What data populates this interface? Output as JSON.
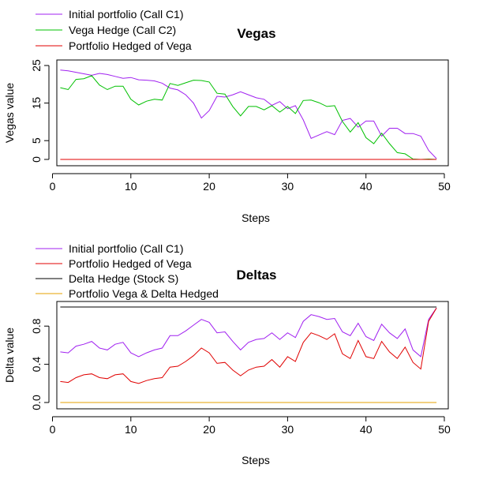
{
  "chart_data": [
    {
      "type": "line",
      "title": "Vegas",
      "xlabel": "Steps",
      "ylabel": "Vegas value",
      "xlim": [
        0,
        50
      ],
      "ylim": [
        0,
        25
      ],
      "xticks": [
        0,
        10,
        20,
        30,
        40,
        50
      ],
      "yticks": [
        0,
        5,
        15,
        25
      ],
      "grid": false,
      "legend_position": "top-left, outside plot",
      "x": [
        1,
        2,
        3,
        4,
        5,
        6,
        7,
        8,
        9,
        10,
        11,
        12,
        13,
        14,
        15,
        16,
        17,
        18,
        19,
        20,
        21,
        22,
        23,
        24,
        25,
        26,
        27,
        28,
        29,
        30,
        31,
        32,
        33,
        34,
        35,
        36,
        37,
        38,
        39,
        40,
        41,
        42,
        43,
        44,
        45,
        46,
        47,
        48,
        49
      ],
      "series": [
        {
          "name": "Initial portfolio (Call C1)",
          "color": "#a020f0",
          "values": [
            23.8,
            23.6,
            23.2,
            22.8,
            22.4,
            22.9,
            22.6,
            22.1,
            21.6,
            21.8,
            21.2,
            21.1,
            20.9,
            20.3,
            19.0,
            18.5,
            17.2,
            15.0,
            11.0,
            13.0,
            16.8,
            16.6,
            17.2,
            18.0,
            17.2,
            16.4,
            16.0,
            14.4,
            15.4,
            13.5,
            14.3,
            10.5,
            5.6,
            6.5,
            7.4,
            6.6,
            10.4,
            10.9,
            8.6,
            10.2,
            10.2,
            6.2,
            8.3,
            8.3,
            6.9,
            6.9,
            6.2,
            2.4,
            0.2
          ]
        },
        {
          "name": "Vega Hedge (Call C2)",
          "color": "#00c000",
          "values": [
            19.1,
            18.6,
            21.3,
            21.5,
            22.3,
            19.8,
            18.6,
            19.5,
            19.5,
            16.0,
            14.5,
            15.5,
            16.0,
            15.8,
            20.2,
            19.7,
            20.4,
            21.1,
            21.0,
            20.6,
            17.6,
            17.4,
            14.1,
            11.6,
            14.1,
            14.1,
            13.2,
            14.3,
            12.6,
            14.1,
            12.2,
            15.7,
            15.8,
            15.1,
            14.1,
            14.3,
            10.1,
            7.3,
            9.8,
            5.8,
            4.2,
            7.0,
            4.2,
            1.8,
            1.5,
            0.1,
            0.0,
            0.1,
            0.0
          ]
        },
        {
          "name": "Portfolio Hedged of Vega",
          "color": "#e00000",
          "values": [
            0,
            0,
            0,
            0,
            0,
            0,
            0,
            0,
            0,
            0,
            0,
            0,
            0,
            0,
            0,
            0,
            0,
            0,
            0,
            0,
            0,
            0,
            0,
            0,
            0,
            0,
            0,
            0,
            0,
            0,
            0,
            0,
            0,
            0,
            0,
            0,
            0,
            0,
            0,
            0,
            0,
            0,
            0,
            0,
            0,
            0,
            0,
            0,
            0
          ]
        }
      ]
    },
    {
      "type": "line",
      "title": "Deltas",
      "xlabel": "Steps",
      "ylabel": "Delta value",
      "xlim": [
        0,
        50
      ],
      "ylim": [
        0,
        1
      ],
      "xticks": [
        0,
        10,
        20,
        30,
        40,
        50
      ],
      "yticks": [
        0.0,
        0.4,
        0.8
      ],
      "grid": false,
      "legend_position": "top-left, outside plot",
      "x": [
        1,
        2,
        3,
        4,
        5,
        6,
        7,
        8,
        9,
        10,
        11,
        12,
        13,
        14,
        15,
        16,
        17,
        18,
        19,
        20,
        21,
        22,
        23,
        24,
        25,
        26,
        27,
        28,
        29,
        30,
        31,
        32,
        33,
        34,
        35,
        36,
        37,
        38,
        39,
        40,
        41,
        42,
        43,
        44,
        45,
        46,
        47,
        48,
        49
      ],
      "series": [
        {
          "name": "Initial portfolio (Call C1)",
          "color": "#a020f0",
          "values": [
            0.53,
            0.52,
            0.59,
            0.61,
            0.64,
            0.57,
            0.55,
            0.61,
            0.63,
            0.52,
            0.48,
            0.52,
            0.55,
            0.57,
            0.7,
            0.7,
            0.75,
            0.81,
            0.87,
            0.84,
            0.73,
            0.74,
            0.64,
            0.55,
            0.63,
            0.66,
            0.67,
            0.73,
            0.66,
            0.73,
            0.68,
            0.85,
            0.92,
            0.9,
            0.87,
            0.88,
            0.74,
            0.7,
            0.83,
            0.69,
            0.65,
            0.82,
            0.73,
            0.67,
            0.77,
            0.55,
            0.48,
            0.87,
            0.99
          ]
        },
        {
          "name": "Portfolio Hedged of Vega",
          "color": "#e00000",
          "values": [
            0.22,
            0.21,
            0.26,
            0.29,
            0.3,
            0.26,
            0.25,
            0.29,
            0.3,
            0.22,
            0.2,
            0.23,
            0.25,
            0.26,
            0.37,
            0.38,
            0.43,
            0.49,
            0.57,
            0.52,
            0.41,
            0.42,
            0.34,
            0.28,
            0.34,
            0.37,
            0.38,
            0.45,
            0.37,
            0.48,
            0.43,
            0.63,
            0.73,
            0.7,
            0.66,
            0.72,
            0.51,
            0.46,
            0.65,
            0.48,
            0.46,
            0.64,
            0.53,
            0.46,
            0.58,
            0.42,
            0.35,
            0.85,
            0.99
          ]
        },
        {
          "name": "Delta Hedge (Stock S)",
          "color": "#000000",
          "values": [
            1,
            1,
            1,
            1,
            1,
            1,
            1,
            1,
            1,
            1,
            1,
            1,
            1,
            1,
            1,
            1,
            1,
            1,
            1,
            1,
            1,
            1,
            1,
            1,
            1,
            1,
            1,
            1,
            1,
            1,
            1,
            1,
            1,
            1,
            1,
            1,
            1,
            1,
            1,
            1,
            1,
            1,
            1,
            1,
            1,
            1,
            1,
            1,
            1
          ]
        },
        {
          "name": "Portfolio Vega & Delta Hedged",
          "color": "#e6a000",
          "values": [
            0,
            0,
            0,
            0,
            0,
            0,
            0,
            0,
            0,
            0,
            0,
            0,
            0,
            0,
            0,
            0,
            0,
            0,
            0,
            0,
            0,
            0,
            0,
            0,
            0,
            0,
            0,
            0,
            0,
            0,
            0,
            0,
            0,
            0,
            0,
            0,
            0,
            0,
            0,
            0,
            0,
            0,
            0,
            0,
            0,
            0,
            0,
            0,
            0
          ]
        }
      ]
    }
  ]
}
